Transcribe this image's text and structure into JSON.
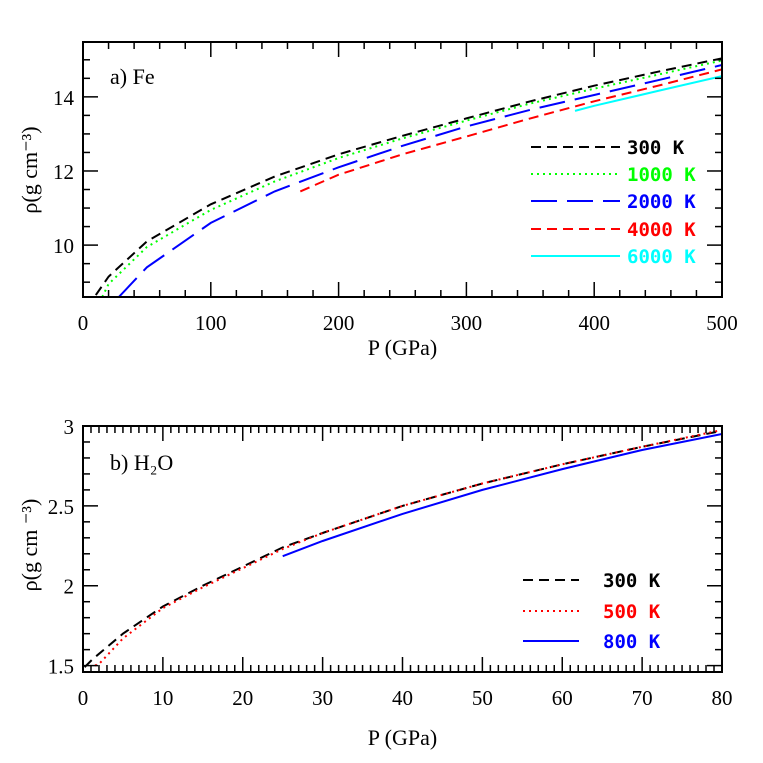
{
  "chart_data": [
    {
      "type": "line",
      "panel_label": "a) Fe",
      "xlabel": "P (GPa)",
      "ylabel": "ρ(g cm⁻³)",
      "xlim": [
        0,
        500
      ],
      "ylim": [
        8.6,
        15.48
      ],
      "xticks": [
        0,
        100,
        200,
        300,
        400,
        500
      ],
      "yticks": [
        10,
        12,
        14
      ],
      "x_minor": 20,
      "y_minor": 0.5,
      "legend_placement": "lower-right",
      "series": [
        {
          "name": "300 K",
          "color": "#000000",
          "style": "dashed",
          "x": [
            10,
            20,
            50,
            100,
            150,
            200,
            250,
            300,
            350,
            400,
            450,
            500
          ],
          "y": [
            8.65,
            9.15,
            10.1,
            11.1,
            11.85,
            12.45,
            12.95,
            13.42,
            13.88,
            14.3,
            14.68,
            15.04
          ]
        },
        {
          "name": "1000 K",
          "color": "#00ff00",
          "style": "dotted",
          "x": [
            15,
            20,
            50,
            100,
            150,
            200,
            250,
            300,
            350,
            400,
            450,
            500
          ],
          "y": [
            8.6,
            8.95,
            9.95,
            10.95,
            11.72,
            12.35,
            12.88,
            13.36,
            13.82,
            14.22,
            14.6,
            14.98
          ]
        },
        {
          "name": "2000 K",
          "color": "#0000ff",
          "style": "long-dashed",
          "x": [
            28,
            50,
            100,
            150,
            200,
            250,
            300,
            350,
            400,
            450,
            500
          ],
          "y": [
            8.6,
            9.4,
            10.6,
            11.45,
            12.1,
            12.68,
            13.2,
            13.65,
            14.05,
            14.45,
            14.86
          ]
        },
        {
          "name": "4000 K",
          "color": "#ff0000",
          "style": "dashed",
          "x": [
            170,
            200,
            250,
            300,
            350,
            400,
            450,
            500
          ],
          "y": [
            11.45,
            11.9,
            12.45,
            12.93,
            13.42,
            13.88,
            14.3,
            14.74
          ]
        },
        {
          "name": "6000 K",
          "color": "#00ffff",
          "style": "solid",
          "x": [
            385,
            400,
            450,
            500
          ],
          "y": [
            13.62,
            13.76,
            14.16,
            14.56
          ]
        }
      ]
    },
    {
      "type": "line",
      "panel_label": "b) H₂O",
      "xlabel": "P (GPa)",
      "ylabel": "ρ(g cm ⁻³)",
      "xlim": [
        0,
        80
      ],
      "ylim": [
        1.46,
        3.0
      ],
      "xticks": [
        0,
        10,
        20,
        30,
        40,
        50,
        60,
        70,
        80
      ],
      "yticks": [
        1.5,
        2,
        2.5,
        3
      ],
      "ytick_labels": [
        "1.5",
        "2",
        "2.5",
        "3"
      ],
      "x_minor": 1,
      "y_minor": 0.1,
      "legend_placement": "lower-right",
      "series": [
        {
          "name": "300 K",
          "color": "#000000",
          "style": "dashed",
          "x": [
            0.2,
            1.2,
            5,
            10,
            15,
            20,
            25,
            30,
            40,
            50,
            60,
            70,
            80
          ],
          "y": [
            1.49,
            1.54,
            1.7,
            1.87,
            2.0,
            2.12,
            2.24,
            2.33,
            2.5,
            2.64,
            2.76,
            2.87,
            2.97
          ]
        },
        {
          "name": "500 K",
          "color": "#ff0000",
          "style": "dotted",
          "x": [
            1.5,
            2,
            5,
            10,
            15,
            20,
            25,
            30,
            40,
            50,
            60,
            70,
            80
          ],
          "y": [
            1.5,
            1.51,
            1.67,
            1.86,
            1.99,
            2.11,
            2.23,
            2.33,
            2.5,
            2.64,
            2.76,
            2.87,
            2.975
          ]
        },
        {
          "name": "800 K",
          "color": "#0000ff",
          "style": "solid",
          "x": [
            25,
            30,
            40,
            50,
            60,
            70,
            80
          ],
          "y": [
            2.185,
            2.28,
            2.45,
            2.6,
            2.73,
            2.85,
            2.95
          ]
        }
      ]
    }
  ]
}
